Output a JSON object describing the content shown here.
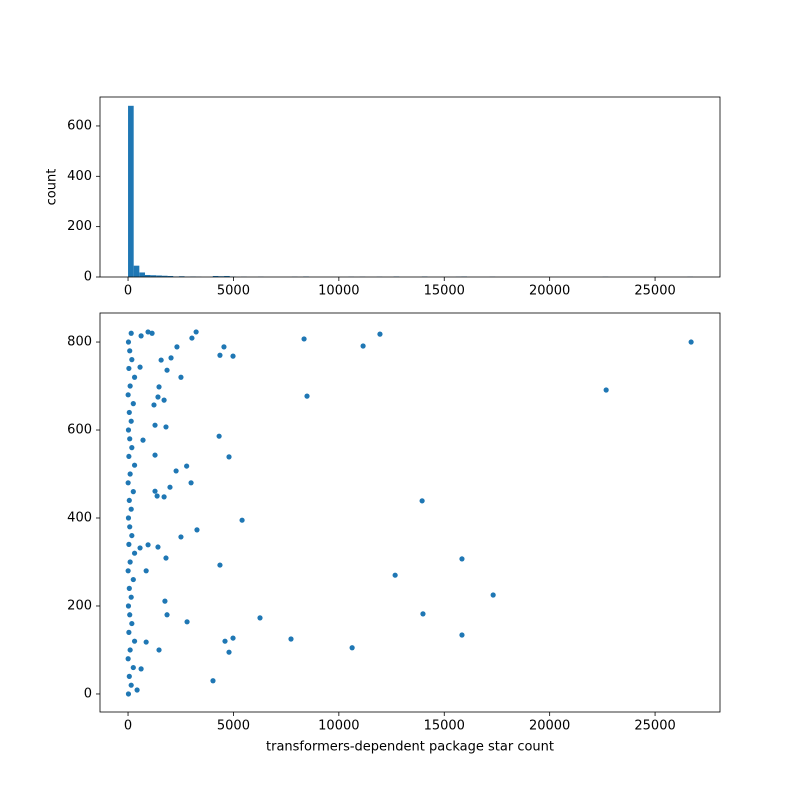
{
  "chart_data": [
    {
      "type": "histogram",
      "color": "#1f77b4",
      "ylabel": "count",
      "bins": [
        0,
        268,
        536,
        804,
        1072,
        1340,
        1608,
        1876,
        2144,
        2412,
        2680,
        2948,
        3216,
        3484,
        3752,
        4020,
        4288,
        4556,
        4824,
        5092,
        5360,
        5628,
        5896,
        6164,
        6432,
        6700,
        6968,
        7236,
        7504,
        7772,
        8040,
        8308,
        8576,
        8844,
        9112,
        9380,
        9648,
        9916,
        10184,
        10452,
        10720,
        10988,
        11256,
        11524,
        11792,
        12060,
        12328,
        12596,
        12864,
        13132,
        13400,
        13668,
        13936,
        14204,
        14472,
        14740,
        15008,
        15276,
        15544,
        15812,
        16080,
        16348,
        16616,
        16884,
        17152,
        17420,
        17688,
        17956,
        18224,
        18492,
        18760,
        19028,
        19296,
        19564,
        19832,
        20100,
        20368,
        20636,
        20904,
        21172,
        21440,
        21708,
        21976,
        22244,
        22512,
        22780,
        23048,
        23316,
        23584,
        23852,
        24120,
        24388,
        24656,
        24924,
        25192,
        25460,
        25728,
        25996,
        26264,
        26532,
        26800
      ],
      "counts": [
        680,
        45,
        18,
        8,
        7,
        6,
        5,
        4,
        2,
        3,
        1,
        2,
        1,
        0,
        0,
        4,
        3,
        4,
        2,
        0,
        1,
        0,
        0,
        1,
        0,
        0,
        0,
        0,
        0,
        1,
        0,
        2,
        0,
        0,
        0,
        0,
        0,
        0,
        0,
        1,
        0,
        1,
        0,
        0,
        1,
        0,
        0,
        2,
        0,
        0,
        0,
        0,
        2,
        0,
        0,
        0,
        0,
        0,
        1,
        2,
        0,
        0,
        0,
        0,
        1,
        0,
        0,
        0,
        0,
        0,
        0,
        0,
        0,
        0,
        0,
        0,
        0,
        0,
        0,
        0,
        0,
        0,
        0,
        0,
        1,
        0,
        0,
        0,
        0,
        0,
        0,
        0,
        0,
        0,
        0,
        0,
        0,
        0,
        0,
        1
      ],
      "xlim": [
        -1330,
        28080
      ],
      "xticks": [
        0,
        5000,
        10000,
        15000,
        20000,
        25000
      ],
      "ylim": [
        0,
        715
      ],
      "yticks": [
        0,
        200,
        400,
        600
      ]
    },
    {
      "type": "scatter",
      "color": "#1f77b4",
      "xlabel": "transformers-dependent package star count",
      "x": [
        26710,
        22680,
        11950,
        11150,
        8350,
        8490,
        13950,
        15840,
        12670,
        17320,
        13990,
        15840,
        10630,
        7730,
        6260,
        4030,
        4980,
        4790,
        4600,
        4360,
        5410,
        3270,
        2990,
        2280,
        2780,
        4320,
        4790,
        4550,
        4980,
        4360,
        3230,
        3030,
        2510,
        2320,
        2040,
        1850,
        1570,
        949,
        1140,
        1470,
        1420,
        1710,
        1230,
        1280,
        1800,
        710,
        1280,
        1380,
        1710,
        1280,
        1990,
        2510,
        1420,
        950,
        570,
        1800,
        860,
        1750,
        1850,
        2800,
        1470,
        860,
        620,
        430,
        620,
        570,
        20,
        150,
        60,
        250,
        5,
        100,
        310,
        40,
        180,
        80,
        20,
        150,
        60,
        250,
        5,
        100,
        310,
        40,
        180,
        80,
        20,
        150,
        60,
        250,
        5,
        100,
        310,
        40,
        180,
        80,
        20,
        150,
        60,
        250,
        5,
        100,
        310,
        40,
        180,
        80,
        20,
        150
      ],
      "y": [
        800,
        691,
        818,
        791,
        807,
        677,
        439,
        307,
        270,
        225,
        182,
        134,
        105,
        125,
        173,
        30,
        127,
        95,
        120,
        293,
        395,
        373,
        480,
        507,
        518,
        586,
        539,
        789,
        768,
        770,
        823,
        809,
        720,
        789,
        764,
        736,
        759,
        823,
        820,
        698,
        675,
        668,
        657,
        611,
        607,
        577,
        543,
        450,
        448,
        461,
        470,
        357,
        334,
        339,
        332,
        309,
        280,
        211,
        180,
        164,
        100,
        118,
        57,
        9,
        814,
        743,
        0,
        20,
        40,
        60,
        80,
        100,
        120,
        140,
        160,
        180,
        200,
        220,
        240,
        260,
        280,
        300,
        320,
        340,
        360,
        380,
        400,
        420,
        440,
        460,
        480,
        500,
        520,
        540,
        560,
        580,
        600,
        620,
        640,
        660,
        680,
        700,
        720,
        740,
        760,
        780,
        800,
        820
      ],
      "xlim": [
        -1330,
        28080
      ],
      "xticks": [
        0,
        5000,
        10000,
        15000,
        20000,
        25000
      ],
      "ylim": [
        -41,
        866
      ],
      "yticks": [
        0,
        200,
        400,
        600,
        800
      ]
    }
  ]
}
